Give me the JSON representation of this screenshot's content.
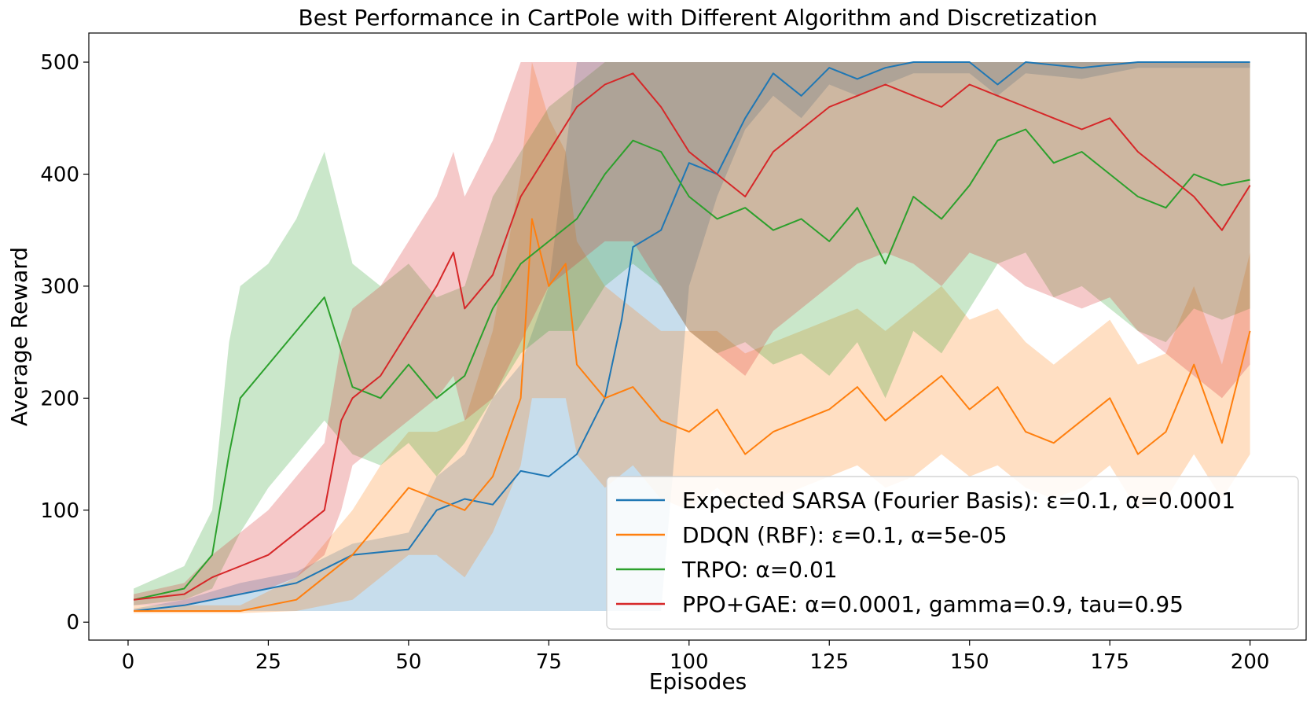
{
  "chart_data": {
    "type": "line",
    "title": "Best Performance in CartPole with Different Algorithm and Discretization",
    "xlabel": "Episodes",
    "ylabel": "Average Reward",
    "xlim": [
      -7,
      210
    ],
    "ylim": [
      -16,
      526
    ],
    "xticks": [
      0,
      25,
      50,
      75,
      100,
      125,
      150,
      175,
      200
    ],
    "yticks": [
      0,
      100,
      200,
      300,
      400,
      500
    ],
    "grid": false,
    "legend_position": "lower-right",
    "series": [
      {
        "name": "Expected SARSA (Fourier Basis): ε=0.1, α=0.0001",
        "color": "#1f77b4",
        "x": [
          1,
          10,
          20,
          30,
          40,
          50,
          55,
          60,
          65,
          70,
          75,
          80,
          85,
          88,
          90,
          95,
          100,
          105,
          110,
          115,
          120,
          125,
          130,
          135,
          140,
          150,
          155,
          160,
          170,
          180,
          190,
          200
        ],
        "y": [
          10,
          15,
          25,
          35,
          60,
          65,
          100,
          110,
          105,
          135,
          130,
          150,
          200,
          270,
          335,
          350,
          410,
          400,
          450,
          490,
          470,
          495,
          485,
          495,
          500,
          500,
          480,
          500,
          495,
          500,
          500,
          500
        ],
        "lower": [
          10,
          10,
          10,
          10,
          10,
          10,
          10,
          10,
          10,
          10,
          10,
          10,
          10,
          10,
          10,
          10,
          300,
          380,
          440,
          470,
          450,
          480,
          470,
          480,
          490,
          490,
          470,
          490,
          485,
          495,
          495,
          495
        ],
        "upper": [
          12,
          20,
          35,
          45,
          70,
          80,
          130,
          150,
          200,
          230,
          300,
          500,
          500,
          500,
          500,
          500,
          500,
          500,
          500,
          500,
          500,
          500,
          500,
          500,
          500,
          500,
          500,
          500,
          500,
          500,
          500,
          500
        ]
      },
      {
        "name": "DDQN (RBF): ε=0.1, α=5e-05",
        "color": "#ff7f0e",
        "x": [
          1,
          10,
          20,
          30,
          40,
          45,
          50,
          55,
          60,
          65,
          70,
          72,
          75,
          78,
          80,
          85,
          90,
          95,
          100,
          105,
          110,
          115,
          120,
          125,
          130,
          135,
          140,
          145,
          150,
          155,
          160,
          165,
          170,
          175,
          180,
          185,
          190,
          195,
          200
        ],
        "y": [
          10,
          10,
          10,
          20,
          60,
          90,
          120,
          110,
          100,
          130,
          200,
          360,
          300,
          320,
          230,
          200,
          210,
          180,
          170,
          190,
          150,
          170,
          180,
          190,
          210,
          180,
          200,
          220,
          190,
          210,
          170,
          160,
          180,
          200,
          150,
          170,
          230,
          160,
          260
        ],
        "lower": [
          8,
          8,
          8,
          10,
          20,
          40,
          60,
          60,
          40,
          80,
          140,
          200,
          200,
          200,
          150,
          120,
          140,
          110,
          100,
          120,
          100,
          110,
          120,
          130,
          140,
          120,
          130,
          150,
          130,
          140,
          120,
          110,
          120,
          140,
          100,
          110,
          150,
          110,
          150
        ],
        "upper": [
          15,
          15,
          15,
          40,
          100,
          140,
          170,
          170,
          180,
          260,
          400,
          500,
          450,
          420,
          340,
          300,
          280,
          260,
          260,
          260,
          240,
          250,
          260,
          270,
          280,
          260,
          280,
          300,
          270,
          280,
          250,
          230,
          250,
          270,
          230,
          240,
          300,
          230,
          330
        ]
      },
      {
        "name": "TRPO: α=0.01",
        "color": "#2ca02c",
        "x": [
          1,
          10,
          15,
          18,
          20,
          25,
          30,
          35,
          40,
          45,
          50,
          55,
          60,
          65,
          70,
          75,
          80,
          85,
          90,
          95,
          100,
          105,
          110,
          115,
          120,
          125,
          130,
          135,
          140,
          145,
          150,
          155,
          160,
          165,
          170,
          175,
          180,
          185,
          190,
          195,
          200
        ],
        "y": [
          20,
          30,
          60,
          150,
          200,
          230,
          260,
          290,
          210,
          200,
          230,
          200,
          220,
          280,
          320,
          340,
          360,
          400,
          430,
          420,
          380,
          360,
          370,
          350,
          360,
          340,
          370,
          320,
          380,
          360,
          390,
          430,
          440,
          410,
          420,
          400,
          380,
          370,
          400,
          390,
          395
        ],
        "lower": [
          15,
          20,
          30,
          60,
          80,
          120,
          150,
          180,
          150,
          140,
          160,
          130,
          160,
          200,
          240,
          260,
          260,
          300,
          320,
          300,
          260,
          240,
          250,
          230,
          240,
          220,
          250,
          200,
          260,
          240,
          280,
          320,
          330,
          290,
          300,
          280,
          260,
          250,
          280,
          270,
          280
        ],
        "upper": [
          30,
          50,
          100,
          250,
          300,
          320,
          360,
          420,
          320,
          300,
          320,
          290,
          300,
          380,
          420,
          460,
          480,
          500,
          500,
          500,
          500,
          500,
          500,
          500,
          500,
          500,
          500,
          500,
          500,
          500,
          500,
          500,
          500,
          500,
          500,
          500,
          500,
          500,
          500,
          500,
          500
        ]
      },
      {
        "name": "PPO+GAE: α=0.0001, gamma=0.9, tau=0.95",
        "color": "#d62728",
        "x": [
          1,
          10,
          15,
          20,
          25,
          30,
          35,
          38,
          40,
          45,
          50,
          55,
          58,
          60,
          65,
          70,
          75,
          80,
          85,
          90,
          95,
          100,
          105,
          110,
          115,
          120,
          125,
          130,
          135,
          140,
          145,
          150,
          155,
          160,
          165,
          170,
          175,
          180,
          185,
          190,
          195,
          200
        ],
        "y": [
          20,
          25,
          40,
          50,
          60,
          80,
          100,
          180,
          200,
          220,
          260,
          300,
          330,
          280,
          310,
          380,
          420,
          460,
          480,
          490,
          460,
          420,
          400,
          380,
          420,
          440,
          460,
          470,
          480,
          470,
          460,
          480,
          470,
          460,
          450,
          440,
          450,
          420,
          400,
          380,
          350,
          390
        ],
        "lower": [
          15,
          15,
          20,
          25,
          30,
          40,
          60,
          100,
          140,
          160,
          180,
          200,
          220,
          180,
          200,
          250,
          300,
          320,
          340,
          340,
          300,
          260,
          240,
          220,
          260,
          280,
          300,
          320,
          330,
          320,
          300,
          330,
          320,
          300,
          290,
          280,
          290,
          260,
          240,
          220,
          200,
          230
        ],
        "upper": [
          25,
          35,
          60,
          80,
          100,
          130,
          160,
          250,
          280,
          300,
          340,
          380,
          420,
          380,
          430,
          500,
          500,
          500,
          500,
          500,
          500,
          500,
          500,
          500,
          500,
          500,
          500,
          500,
          500,
          500,
          500,
          500,
          500,
          500,
          500,
          500,
          500,
          500,
          500,
          500,
          500,
          500
        ]
      }
    ]
  }
}
